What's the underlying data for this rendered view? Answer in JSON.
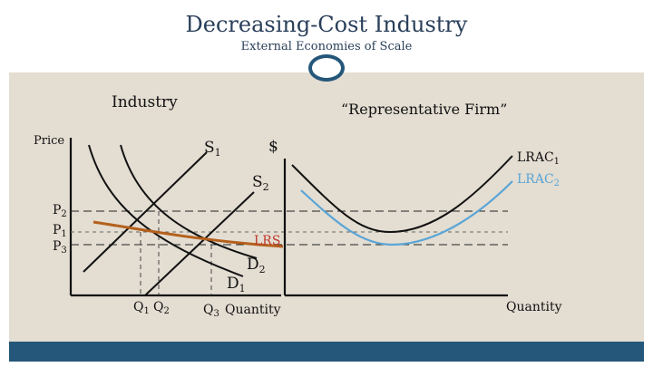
{
  "slide": {
    "title": "Decreasing-Cost Industry",
    "subtitle": "External Economies of Scale"
  },
  "industry_panel": {
    "heading": "Industry",
    "y_axis_label": "Price",
    "x_axis_label": "Quantity",
    "price_labels": [
      "P",
      "P",
      "P"
    ],
    "price_subscripts": [
      "2",
      "1",
      "3"
    ],
    "quantity_labels": [
      "Q",
      "Q",
      "Q"
    ],
    "quantity_subscripts": [
      "1",
      "2",
      "3"
    ],
    "supply_labels": [
      "S",
      "S"
    ],
    "supply_subscripts": [
      "1",
      "2"
    ],
    "demand_labels": [
      "D",
      "D"
    ],
    "demand_subscripts": [
      "1",
      "2"
    ],
    "lrs_label": "LRS"
  },
  "firm_panel": {
    "heading": "“Representative Firm”",
    "y_axis_label": "$",
    "x_axis_label": "Quantity",
    "lrac_labels": [
      "LRAC",
      "LRAC"
    ],
    "lrac_subscripts": [
      "1",
      "2"
    ]
  },
  "colors": {
    "title_text": "#2a3f5a",
    "footer_bar": "#24577a",
    "panel_background": "#e3ddd2",
    "lrs_curve": "#b5601c",
    "lrs_label": "#c0392b",
    "lrac2_curve": "#5aa5d6",
    "curve_black": "#111111"
  }
}
